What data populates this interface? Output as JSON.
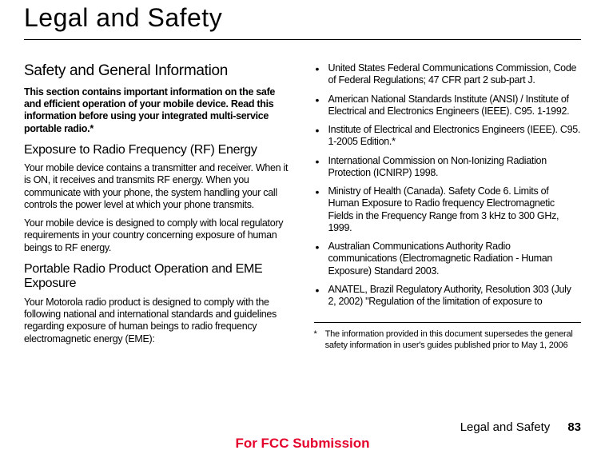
{
  "title": "Legal and Safety",
  "leftCol": {
    "h1": "Safety and General Information",
    "bold": "This section contains important information on the safe and efficient operation of your mobile device. Read this information before using your integrated multi-service portable radio.*",
    "h2a": "Exposure to Radio Frequency (RF) Energy",
    "p1": "Your mobile device contains a transmitter and receiver. When it is ON, it receives and transmits RF energy. When you communicate with your phone, the system handling your call controls the power level at which your phone transmits.",
    "p2": "Your mobile device is designed to comply with local regulatory requirements in your country concerning exposure of human beings to RF energy.",
    "h2b": "Portable Radio Product Operation and EME Exposure",
    "p3": "Your Motorola radio product is designed to comply with the following national and international standards and guidelines regarding exposure of human beings to radio frequency electromagnetic energy (EME):"
  },
  "rightCol": {
    "bullets": [
      "United States Federal Communications Commission, Code of Federal Regulations; 47 CFR part 2 sub-part J.",
      "American National Standards Institute (ANSI) / Institute of Electrical and Electronics Engineers (IEEE). C95. 1-1992.",
      "Institute of Electrical and Electronics Engineers (IEEE). C95. 1-2005 Edition.*",
      "International Commission on Non-Ionizing Radiation Protection (ICNIRP) 1998.",
      "Ministry of Health (Canada). Safety Code 6. Limits of Human Exposure to Radio frequency Electromagnetic Fields in the Frequency Range from 3 kHz to 300 GHz, 1999.",
      "Australian Communications Authority Radio communications (Electromagnetic Radiation - Human Exposure) Standard 2003.",
      "ANATEL, Brazil Regulatory Authority, Resolution 303 (July 2, 2002) \"Regulation of the limitation of exposure to"
    ],
    "footnoteStar": "*",
    "footnoteText": "The information provided in this document supersedes the general safety information in user's guides published prior to May 1, 2006"
  },
  "footer": {
    "section": "Legal and Safety",
    "page": "83"
  },
  "fcc": "For FCC Submission"
}
